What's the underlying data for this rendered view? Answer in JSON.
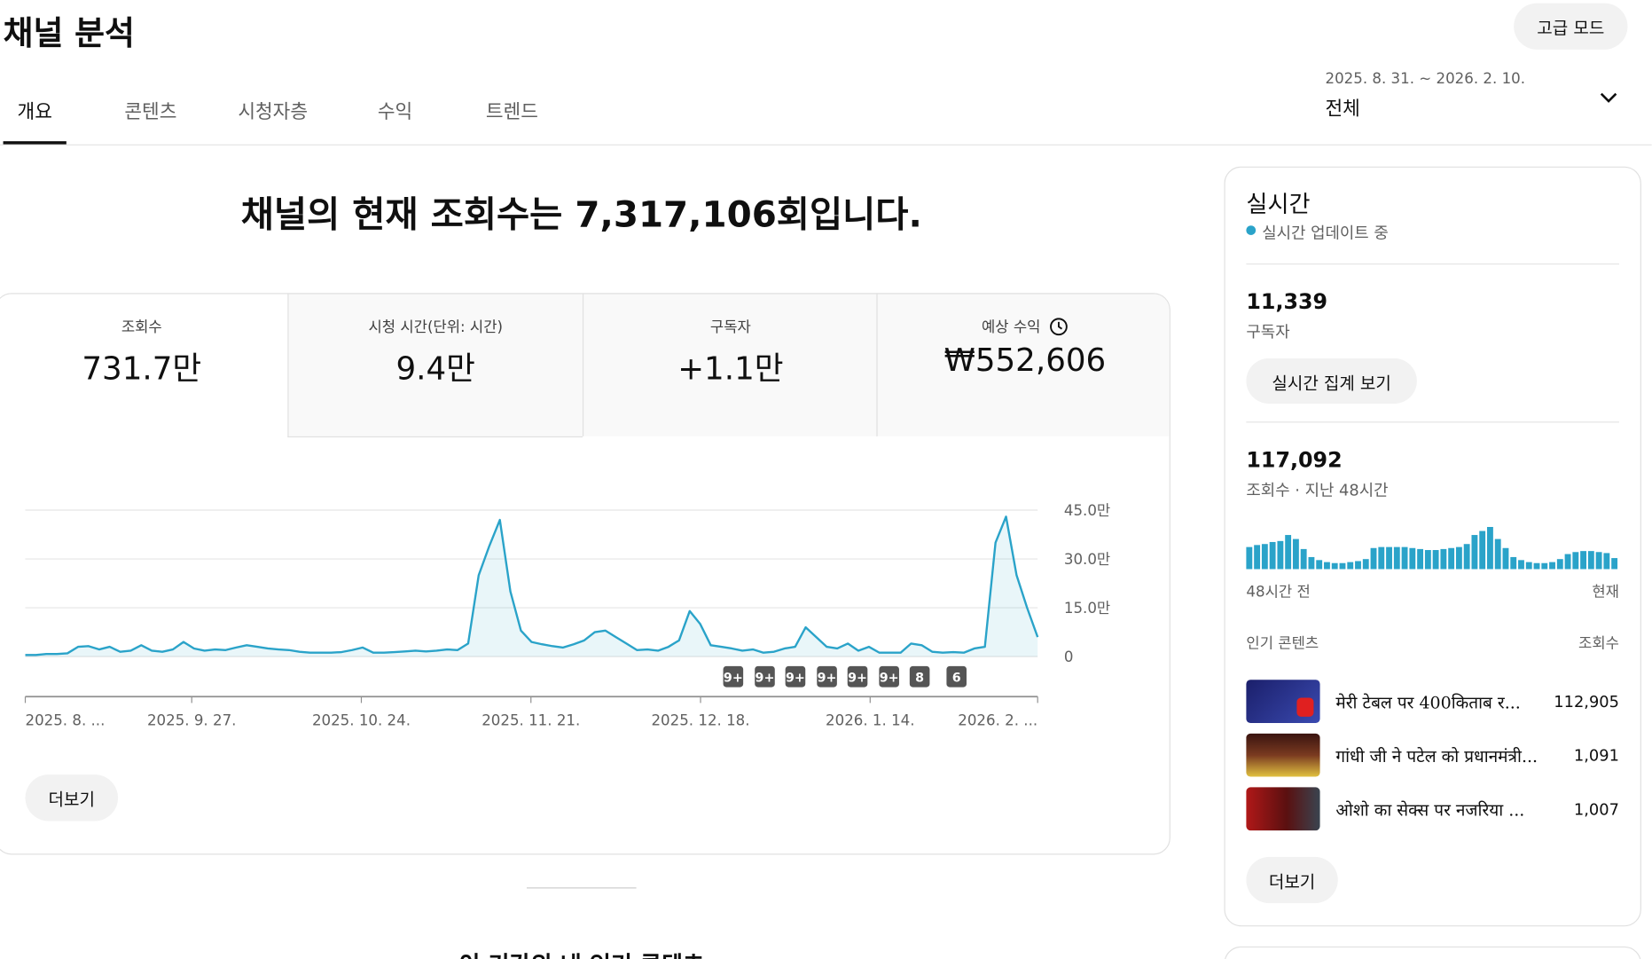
{
  "header": {
    "title": "채널 분석",
    "advanced_mode_button": "고급 모드",
    "date_range": "2025. 8. 31. ~ 2026. 2. 10.",
    "period": "전체"
  },
  "tabs": [
    "개요",
    "콘텐츠",
    "시청자층",
    "수익",
    "트렌드"
  ],
  "headline": "채널의 현재 조회수는 7,317,106회입니다.",
  "metrics": [
    {
      "label": "조회수",
      "value": "731.7만"
    },
    {
      "label": "시청 시간(단위: 시간)",
      "value": "9.4만"
    },
    {
      "label": "구독자",
      "value": "+1.1만"
    },
    {
      "label": "예상 수익",
      "value": "₩552,606"
    }
  ],
  "chart": {
    "type": "line",
    "color": "#2aa3c9",
    "values": [
      5000,
      5000,
      8000,
      8000,
      10000,
      30000,
      32000,
      22000,
      30000,
      15000,
      18000,
      35000,
      18000,
      15000,
      22000,
      45000,
      25000,
      18000,
      22000,
      20000,
      28000,
      35000,
      30000,
      25000,
      22000,
      20000,
      15000,
      12000,
      12000,
      12000,
      14000,
      20000,
      28000,
      12000,
      12000,
      14000,
      16000,
      18000,
      16000,
      18000,
      22000,
      20000,
      40000,
      250000,
      340000,
      420000,
      200000,
      80000,
      45000,
      38000,
      32000,
      28000,
      38000,
      50000,
      75000,
      80000,
      60000,
      40000,
      20000,
      22000,
      18000,
      30000,
      50000,
      140000,
      100000,
      35000,
      30000,
      25000,
      18000,
      22000,
      12000,
      15000,
      25000,
      30000,
      90000,
      60000,
      30000,
      25000,
      40000,
      18000,
      30000,
      12000,
      12000,
      12000,
      40000,
      35000,
      15000,
      12000,
      14000,
      12000,
      25000,
      30000,
      350000,
      430000,
      250000,
      150000,
      60000
    ],
    "ylim": [
      0,
      450000
    ],
    "yticks": [
      0,
      {
        "value": 150000,
        "label": "15.0만"
      },
      {
        "value": 300000,
        "label": "30.0만"
      },
      {
        "value": 450000,
        "label": "45.0만"
      }
    ],
    "grid": true,
    "x_labels": [
      "2025. 8. ...",
      "2025. 9. 27.",
      "2025. 10. 24.",
      "2025. 11. 21.",
      "2025. 12. 18.",
      "2026. 1. 14.",
      "2026. 2. ..."
    ],
    "badges": [
      "9+",
      "9+",
      "9+",
      "9+",
      "9+",
      "9+",
      "8",
      "6"
    ]
  },
  "more_button": "더보기",
  "section_title": "이 기간의 내 인기 콘텐츠",
  "realtime": {
    "title": "실시간",
    "status": "실시간 업데이트 중",
    "subscribers": "11,339",
    "subscribers_label": "구독자",
    "realtime_button": "실시간 집계 보기",
    "views": "117,092",
    "views_label": "조회수 · 지난 48시간",
    "hourly_views": [
      2200,
      2400,
      2500,
      2700,
      2800,
      3400,
      3000,
      2000,
      1200,
      900,
      700,
      600,
      600,
      700,
      800,
      1000,
      2100,
      2200,
      2200,
      2200,
      2200,
      2100,
      2000,
      1900,
      1900,
      2000,
      2100,
      2200,
      2500,
      3400,
      3800,
      4200,
      3000,
      2100,
      1200,
      900,
      700,
      600,
      600,
      700,
      1000,
      1500,
      1700,
      1800,
      1800,
      1700,
      1600,
      1100
    ],
    "start_label": "48시간 전",
    "end_label": "현재",
    "top_content_label": "인기 콘텐츠",
    "views_column": "조회수",
    "top_content": [
      {
        "title": "मेरी टेबल पर 400किताब र...",
        "views": "112,905"
      },
      {
        "title": "गांधी जी ने पटेल को प्रधानमंत्री...",
        "views": "1,091"
      },
      {
        "title": "ओशो का सेक्स पर नजरिया ...",
        "views": "1,007"
      }
    ],
    "more_button": "더보기"
  }
}
